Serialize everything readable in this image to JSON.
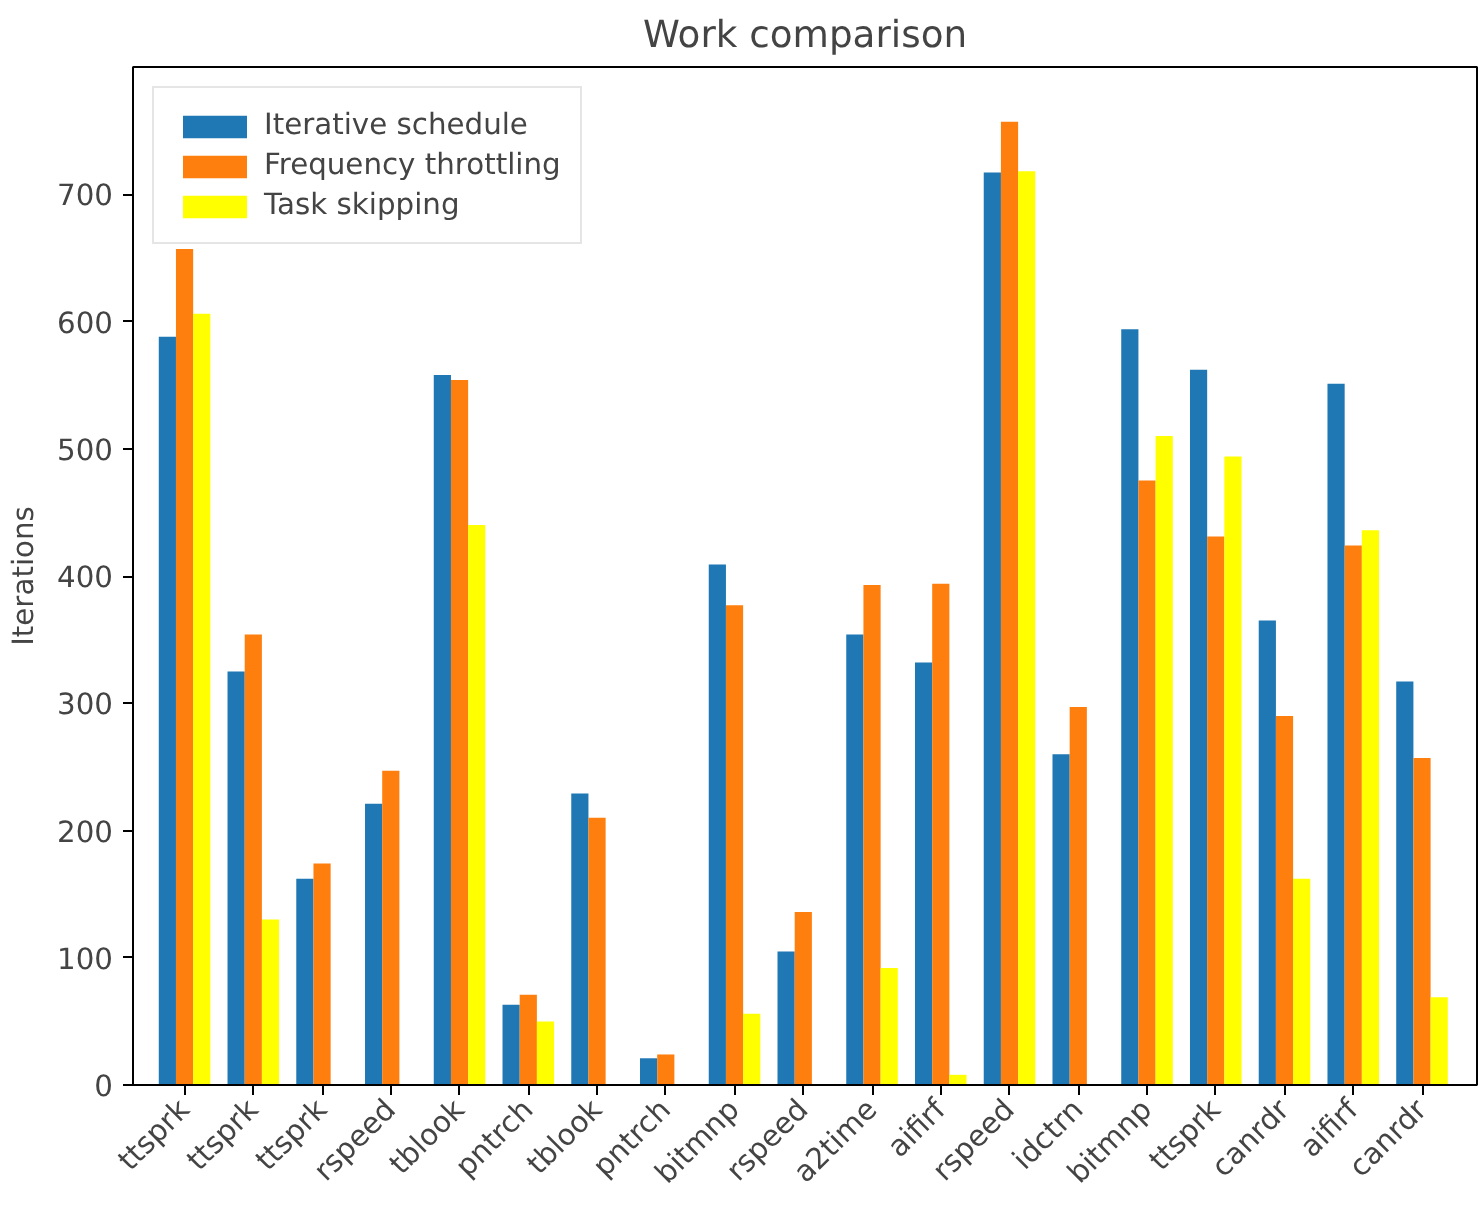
{
  "chart_data": {
    "type": "bar",
    "title": "Work comparison",
    "ylabel": "Iterations",
    "categories": [
      "ttsprk",
      "ttsprk",
      "ttsprk",
      "rspeed",
      "tblook",
      "pntrch",
      "tblook",
      "pntrch",
      "bitmnp",
      "rspeed",
      "a2time",
      "aifirf",
      "rspeed",
      "idctrn",
      "bitmnp",
      "ttsprk",
      "canrdr",
      "aifirf",
      "canrdr"
    ],
    "series": [
      {
        "name": "Iterative schedule",
        "color": "#1f77b4",
        "values": [
          588,
          325,
          162,
          221,
          558,
          63,
          229,
          21,
          409,
          105,
          354,
          332,
          717,
          260,
          594,
          562,
          365,
          551,
          317
        ]
      },
      {
        "name": "Frequency throttling",
        "color": "#ff7f0e",
        "values": [
          657,
          354,
          174,
          247,
          554,
          71,
          210,
          24,
          377,
          136,
          393,
          394,
          757,
          297,
          475,
          431,
          290,
          424,
          257
        ]
      },
      {
        "name": "Task skipping",
        "color": "#ffff00",
        "values": [
          606,
          130,
          null,
          null,
          440,
          50,
          null,
          null,
          56,
          null,
          92,
          8,
          718,
          null,
          510,
          494,
          162,
          436,
          69
        ]
      }
    ],
    "ylim": [
      0,
      800
    ],
    "yticks": [
      0,
      100,
      200,
      300,
      400,
      500,
      600,
      700
    ],
    "grid": false,
    "legend": "top left"
  }
}
